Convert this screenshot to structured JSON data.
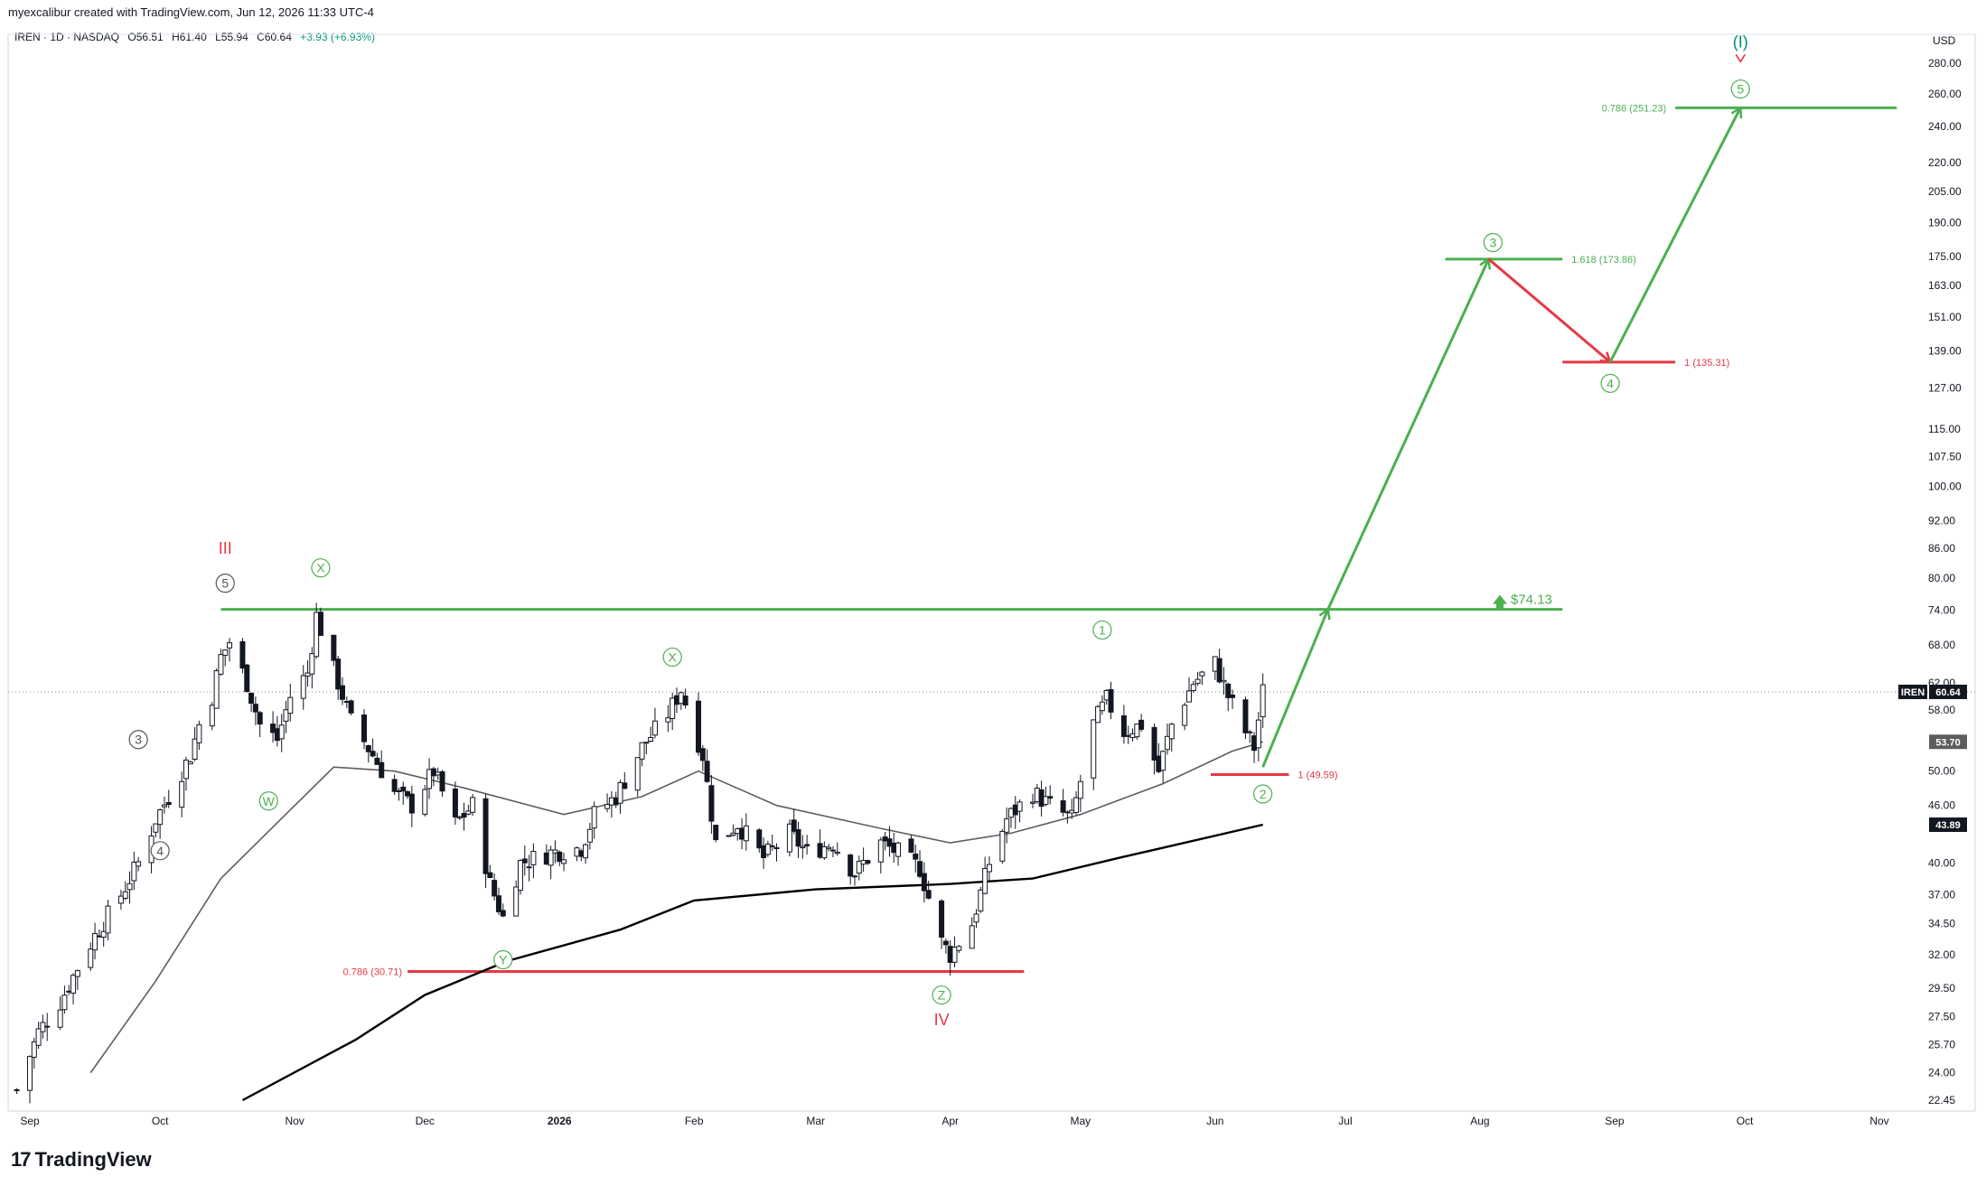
{
  "header": {
    "attribution": "myexcalibur created with TradingView.com, Jun 12, 2026 11:33 UTC-4"
  },
  "symbol": {
    "title": "IREN · 1D · NASDAQ",
    "open": "O56.51",
    "high": "H61.40",
    "low": "L55.94",
    "close": "C60.64",
    "change": "+3.93 (+6.93%)"
  },
  "colors": {
    "green": "#4caf50",
    "red": "#e53946",
    "candle": "#131722",
    "sma_short": "#5d5d5d",
    "sma_long": "#000000",
    "wave_I": "#00897b"
  },
  "chart_data": {
    "type": "candlestick",
    "title": "IREN · 1D · NASDAQ",
    "currency_label": "USD",
    "y_scale": "log",
    "ylim": [
      22.45,
      285
    ],
    "y_ticks": [
      "280.00",
      "260.00",
      "240.00",
      "220.00",
      "205.00",
      "190.00",
      "175.00",
      "163.00",
      "151.00",
      "139.00",
      "127.00",
      "115.00",
      "107.50",
      "100.00",
      "92.00",
      "86.00",
      "80.00",
      "74.00",
      "68.00",
      "62.00",
      "58.00",
      "50.00",
      "46.00",
      "40.00",
      "37.00",
      "34.50",
      "32.00",
      "29.50",
      "27.50",
      "25.70",
      "24.00",
      "22.45"
    ],
    "x_ticks": [
      {
        "label": "Sep",
        "date": "2025-09-01"
      },
      {
        "label": "Oct",
        "date": "2025-10-01"
      },
      {
        "label": "Nov",
        "date": "2025-11-01"
      },
      {
        "label": "Dec",
        "date": "2025-12-01"
      },
      {
        "label": "2026",
        "date": "2026-01-01"
      },
      {
        "label": "Feb",
        "date": "2026-02-01"
      },
      {
        "label": "Mar",
        "date": "2026-03-01"
      },
      {
        "label": "Apr",
        "date": "2026-04-01"
      },
      {
        "label": "May",
        "date": "2026-05-01"
      },
      {
        "label": "Jun",
        "date": "2026-06-01"
      },
      {
        "label": "Jul",
        "date": "2026-07-01"
      },
      {
        "label": "Aug",
        "date": "2026-08-01"
      },
      {
        "label": "Sep",
        "date": "2026-09-01"
      },
      {
        "label": "Oct",
        "date": "2026-10-01"
      },
      {
        "label": "Nov",
        "date": "2026-11-01"
      }
    ],
    "price_path": [
      {
        "date": "2025-08-29",
        "close": 23.0
      },
      {
        "date": "2025-09-03",
        "close": 26.5
      },
      {
        "date": "2025-09-08",
        "close": 28.5
      },
      {
        "date": "2025-09-12",
        "close": 31.0
      },
      {
        "date": "2025-09-16",
        "close": 33.5
      },
      {
        "date": "2025-09-22",
        "close": 37.0
      },
      {
        "date": "2025-09-26",
        "close": 40.0
      },
      {
        "date": "2025-09-30",
        "close": 44.5
      },
      {
        "date": "2025-10-03",
        "close": 47.0
      },
      {
        "date": "2025-10-08",
        "close": 52.0
      },
      {
        "date": "2025-10-10",
        "close": 56.0
      },
      {
        "date": "2025-10-13",
        "close": 60.0
      },
      {
        "date": "2025-10-15",
        "close": 66.0
      },
      {
        "date": "2025-10-17",
        "close": 68.5
      },
      {
        "date": "2025-10-21",
        "close": 62.0
      },
      {
        "date": "2025-10-24",
        "close": 56.0
      },
      {
        "date": "2025-10-28",
        "close": 54.0
      },
      {
        "date": "2025-10-31",
        "close": 60.0
      },
      {
        "date": "2025-11-04",
        "close": 63.5
      },
      {
        "date": "2025-11-06",
        "close": 73.0
      },
      {
        "date": "2025-11-10",
        "close": 64.0
      },
      {
        "date": "2025-11-14",
        "close": 56.5
      },
      {
        "date": "2025-11-19",
        "close": 52.0
      },
      {
        "date": "2025-11-24",
        "close": 47.5
      },
      {
        "date": "2025-11-28",
        "close": 46.0
      },
      {
        "date": "2025-12-03",
        "close": 50.0
      },
      {
        "date": "2025-12-08",
        "close": 44.0
      },
      {
        "date": "2025-12-12",
        "close": 46.0
      },
      {
        "date": "2025-12-16",
        "close": 38.0
      },
      {
        "date": "2025-12-19",
        "close": 35.0
      },
      {
        "date": "2025-12-23",
        "close": 40.0
      },
      {
        "date": "2025-12-30",
        "close": 41.0
      },
      {
        "date": "2026-01-06",
        "close": 41.5
      },
      {
        "date": "2026-01-09",
        "close": 45.0
      },
      {
        "date": "2026-01-14",
        "close": 47.0
      },
      {
        "date": "2026-01-20",
        "close": 53.0
      },
      {
        "date": "2026-01-26",
        "close": 57.5
      },
      {
        "date": "2026-01-29",
        "close": 61.0
      },
      {
        "date": "2026-02-03",
        "close": 52.0
      },
      {
        "date": "2026-02-06",
        "close": 42.0
      },
      {
        "date": "2026-02-11",
        "close": 44.0
      },
      {
        "date": "2026-02-17",
        "close": 40.5
      },
      {
        "date": "2026-02-23",
        "close": 43.0
      },
      {
        "date": "2026-02-27",
        "close": 41.0
      },
      {
        "date": "2026-03-05",
        "close": 42.0
      },
      {
        "date": "2026-03-10",
        "close": 39.0
      },
      {
        "date": "2026-03-16",
        "close": 42.0
      },
      {
        "date": "2026-03-20",
        "close": 41.0
      },
      {
        "date": "2026-03-25",
        "close": 39.5
      },
      {
        "date": "2026-03-30",
        "close": 33.0
      },
      {
        "date": "2026-04-01",
        "close": 32.0
      },
      {
        "date": "2026-04-06",
        "close": 34.5
      },
      {
        "date": "2026-04-10",
        "close": 40.0
      },
      {
        "date": "2026-04-14",
        "close": 44.5
      },
      {
        "date": "2026-04-20",
        "close": 47.5
      },
      {
        "date": "2026-04-24",
        "close": 46.0
      },
      {
        "date": "2026-04-29",
        "close": 44.5
      },
      {
        "date": "2026-05-04",
        "close": 56.0
      },
      {
        "date": "2026-05-07",
        "close": 59.5
      },
      {
        "date": "2026-05-11",
        "close": 55.0
      },
      {
        "date": "2026-05-15",
        "close": 56.0
      },
      {
        "date": "2026-05-19",
        "close": 50.0
      },
      {
        "date": "2026-05-22",
        "close": 56.0
      },
      {
        "date": "2026-05-27",
        "close": 62.0
      },
      {
        "date": "2026-06-01",
        "close": 65.0
      },
      {
        "date": "2026-06-04",
        "close": 60.0
      },
      {
        "date": "2026-06-08",
        "close": 55.0
      },
      {
        "date": "2026-06-10",
        "close": 53.0
      },
      {
        "date": "2026-06-12",
        "close": 60.64
      }
    ],
    "sma_short_path": [
      {
        "date": "2025-09-15",
        "value": 24.0
      },
      {
        "date": "2025-09-30",
        "value": 30.0
      },
      {
        "date": "2025-10-15",
        "value": 38.5
      },
      {
        "date": "2025-10-31",
        "value": 45.5
      },
      {
        "date": "2025-11-10",
        "value": 50.5
      },
      {
        "date": "2025-11-24",
        "value": 50.0
      },
      {
        "date": "2025-12-10",
        "value": 48.0
      },
      {
        "date": "2026-01-02",
        "value": 45.0
      },
      {
        "date": "2026-01-20",
        "value": 47.0
      },
      {
        "date": "2026-02-02",
        "value": 50.0
      },
      {
        "date": "2026-02-20",
        "value": 46.0
      },
      {
        "date": "2026-03-16",
        "value": 43.5
      },
      {
        "date": "2026-04-01",
        "value": 42.0
      },
      {
        "date": "2026-04-15",
        "value": 43.0
      },
      {
        "date": "2026-05-01",
        "value": 45.0
      },
      {
        "date": "2026-05-20",
        "value": 48.5
      },
      {
        "date": "2026-06-05",
        "value": 52.5
      },
      {
        "date": "2026-06-12",
        "value": 53.7
      }
    ],
    "sma_long_path": [
      {
        "date": "2025-10-20",
        "value": 22.45
      },
      {
        "date": "2025-11-15",
        "value": 26.0
      },
      {
        "date": "2025-12-01",
        "value": 29.0
      },
      {
        "date": "2025-12-20",
        "value": 31.5
      },
      {
        "date": "2026-01-15",
        "value": 34.0
      },
      {
        "date": "2026-02-01",
        "value": 36.5
      },
      {
        "date": "2026-03-01",
        "value": 37.5
      },
      {
        "date": "2026-04-01",
        "value": 38.0
      },
      {
        "date": "2026-04-20",
        "value": 38.5
      },
      {
        "date": "2026-05-10",
        "value": 40.5
      },
      {
        "date": "2026-06-12",
        "value": 43.89
      }
    ],
    "price_labels": [
      {
        "text": "IREN",
        "value": "60.64",
        "price": 60.64,
        "style": "symbol"
      },
      {
        "text": "",
        "value": "53.70",
        "price": 53.7,
        "style": "gray"
      },
      {
        "text": "",
        "value": "43.89",
        "price": 43.89,
        "style": "black"
      }
    ],
    "horizontal_levels": [
      {
        "label": "$74.13",
        "price": 74.13,
        "from": "2025-10-15",
        "to": "2026-08-20",
        "color": "green"
      },
      {
        "label": "0.786 (251.23)",
        "price": 251.23,
        "from": "2026-09-15",
        "to": "2026-11-05",
        "color": "green"
      },
      {
        "label": "1.618 (173.86)",
        "price": 173.86,
        "from": "2026-07-24",
        "to": "2026-08-20",
        "color": "green"
      },
      {
        "label": "1 (135.31)",
        "price": 135.31,
        "from": "2026-08-20",
        "to": "2026-09-15",
        "color": "red"
      },
      {
        "label": "1 (49.59)",
        "price": 49.59,
        "from": "2026-05-31",
        "to": "2026-06-18",
        "color": "red"
      },
      {
        "label": "0.786 (30.71)",
        "price": 30.71,
        "from": "2025-11-27",
        "to": "2026-04-18",
        "color": "red"
      }
    ],
    "projection_path": [
      {
        "date": "2026-06-12",
        "price": 50.5,
        "color": "green"
      },
      {
        "date": "2026-06-27",
        "price": 74.13,
        "color": "green"
      },
      {
        "date": "2026-08-03",
        "price": 173.86,
        "color": "green"
      },
      {
        "date": "2026-08-31",
        "price": 135.31,
        "color": "red"
      },
      {
        "date": "2026-09-30",
        "price": 251.23,
        "color": "green"
      }
    ],
    "wave_labels": [
      {
        "text": "III",
        "date": "2025-10-16",
        "price": 86.0,
        "color": "red",
        "circled": false
      },
      {
        "text": "5",
        "date": "2025-10-16",
        "price": 79.0,
        "color": "gray",
        "circled": true
      },
      {
        "text": "X",
        "date": "2025-11-07",
        "price": 82.0,
        "color": "green",
        "circled": true
      },
      {
        "text": "3",
        "date": "2025-09-26",
        "price": 54.0,
        "color": "gray",
        "circled": true
      },
      {
        "text": "W",
        "date": "2025-10-26",
        "price": 46.5,
        "color": "green",
        "circled": true
      },
      {
        "text": "4",
        "date": "2025-10-01",
        "price": 41.2,
        "color": "gray",
        "circled": true
      },
      {
        "text": "X",
        "date": "2026-01-27",
        "price": 66.0,
        "color": "green",
        "circled": true
      },
      {
        "text": "Y",
        "date": "2025-12-19",
        "price": 31.6,
        "color": "green",
        "circled": true
      },
      {
        "text": "Z",
        "date": "2026-03-30",
        "price": 29.0,
        "color": "green",
        "circled": true
      },
      {
        "text": "IV",
        "date": "2026-03-30",
        "price": 27.3,
        "color": "red",
        "circled": false
      },
      {
        "text": "1",
        "date": "2026-05-06",
        "price": 70.5,
        "color": "green",
        "circled": true
      },
      {
        "text": "2",
        "date": "2026-06-12",
        "price": 47.3,
        "color": "green",
        "circled": true
      },
      {
        "text": "3",
        "date": "2026-08-04",
        "price": 181.0,
        "color": "green",
        "circled": true
      },
      {
        "text": "4",
        "date": "2026-08-31",
        "price": 128.5,
        "color": "green",
        "circled": true
      },
      {
        "text": "5",
        "date": "2026-09-30",
        "price": 263.0,
        "color": "green",
        "circled": true
      },
      {
        "text": "(I)",
        "date": "2026-09-30",
        "price": 295.0,
        "color": "teal",
        "circled": false
      }
    ],
    "target_label": "$74.13"
  },
  "footer": {
    "logo_mark": "17",
    "logo_text": "TradingView"
  }
}
